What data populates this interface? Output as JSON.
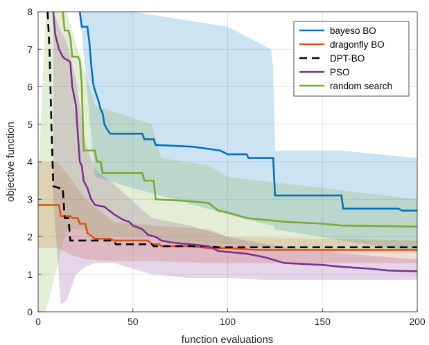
{
  "chart_data": {
    "type": "line",
    "title": "",
    "xlabel": "function evaluations",
    "ylabel": "objective function",
    "xlim": [
      0,
      200
    ],
    "ylim": [
      0,
      8
    ],
    "xticks": [
      0,
      50,
      100,
      150,
      200
    ],
    "yticks": [
      0,
      1,
      2,
      3,
      4,
      5,
      6,
      7,
      8
    ],
    "grid": true,
    "legend_position": "top-right",
    "series": [
      {
        "name": "bayeso BO",
        "color": "#0072BD",
        "dash": "solid",
        "points": [
          [
            22,
            8.0
          ],
          [
            23,
            7.6
          ],
          [
            26,
            7.6
          ],
          [
            27,
            7.2
          ],
          [
            28,
            6.6
          ],
          [
            29,
            6.1
          ],
          [
            30,
            5.9
          ],
          [
            32,
            5.6
          ],
          [
            33,
            5.4
          ],
          [
            34,
            5.3
          ],
          [
            35,
            5.0
          ],
          [
            36,
            4.9
          ],
          [
            38,
            4.75
          ],
          [
            55,
            4.75
          ],
          [
            56,
            4.6
          ],
          [
            61,
            4.6
          ],
          [
            62,
            4.45
          ],
          [
            82,
            4.4
          ],
          [
            96,
            4.3
          ],
          [
            100,
            4.2
          ],
          [
            110,
            4.2
          ],
          [
            111,
            4.1
          ],
          [
            124,
            4.1
          ],
          [
            125,
            3.1
          ],
          [
            160,
            3.1
          ],
          [
            161,
            2.75
          ],
          [
            190,
            2.75
          ],
          [
            192,
            2.7
          ],
          [
            200,
            2.7
          ]
        ],
        "band": [
          [
            22,
            8.0,
            8.0
          ],
          [
            30,
            8.0,
            3.6
          ],
          [
            50,
            8.0,
            3.3
          ],
          [
            100,
            7.6,
            2.6
          ],
          [
            123,
            7.0,
            2.3
          ],
          [
            124,
            6.5,
            2.3
          ],
          [
            125,
            4.3,
            2.2
          ],
          [
            160,
            4.3,
            1.9
          ],
          [
            200,
            4.1,
            1.6
          ]
        ]
      },
      {
        "name": "dragonfly BO",
        "color": "#D95319",
        "dash": "solid",
        "points": [
          [
            0,
            2.85
          ],
          [
            11,
            2.85
          ],
          [
            12,
            2.55
          ],
          [
            17,
            2.55
          ],
          [
            18,
            2.5
          ],
          [
            21,
            2.5
          ],
          [
            22,
            2.35
          ],
          [
            25,
            2.35
          ],
          [
            26,
            2.1
          ],
          [
            30,
            1.95
          ],
          [
            38,
            1.95
          ],
          [
            40,
            1.9
          ],
          [
            58,
            1.9
          ],
          [
            60,
            1.8
          ],
          [
            64,
            1.8
          ],
          [
            65,
            1.75
          ],
          [
            80,
            1.75
          ],
          [
            90,
            1.7
          ],
          [
            100,
            1.7
          ],
          [
            115,
            1.65
          ],
          [
            200,
            1.65
          ]
        ],
        "band": [
          [
            0,
            4.0,
            1.7
          ],
          [
            10,
            4.0,
            1.7
          ],
          [
            18,
            3.5,
            1.5
          ],
          [
            25,
            3.0,
            1.4
          ],
          [
            40,
            2.4,
            1.35
          ],
          [
            60,
            2.3,
            1.35
          ],
          [
            90,
            2.2,
            1.3
          ],
          [
            100,
            2.0,
            1.3
          ],
          [
            150,
            1.95,
            1.3
          ],
          [
            200,
            1.9,
            1.3
          ]
        ]
      },
      {
        "name": "DPT-BO",
        "color": "#000000",
        "dash": "dashed",
        "points": [
          [
            5,
            8.0
          ],
          [
            6,
            7.0
          ],
          [
            7,
            5.0
          ],
          [
            8,
            3.35
          ],
          [
            11,
            3.3
          ],
          [
            13,
            3.3
          ],
          [
            14,
            2.5
          ],
          [
            16,
            2.5
          ],
          [
            17,
            1.9
          ],
          [
            40,
            1.9
          ],
          [
            41,
            1.8
          ],
          [
            60,
            1.8
          ],
          [
            61,
            1.75
          ],
          [
            90,
            1.75
          ],
          [
            95,
            1.72
          ],
          [
            200,
            1.72
          ]
        ],
        "band": []
      },
      {
        "name": "PSO",
        "color": "#7E2F8E",
        "dash": "solid",
        "points": [
          [
            8,
            8.0
          ],
          [
            9,
            7.4
          ],
          [
            11,
            7.0
          ],
          [
            12,
            6.9
          ],
          [
            13,
            6.8
          ],
          [
            14,
            6.75
          ],
          [
            16,
            6.7
          ],
          [
            17,
            6.65
          ],
          [
            18,
            6.0
          ],
          [
            20,
            5.5
          ],
          [
            21,
            4.7
          ],
          [
            22,
            4.0
          ],
          [
            23,
            3.9
          ],
          [
            24,
            3.5
          ],
          [
            26,
            3.3
          ],
          [
            28,
            3.0
          ],
          [
            30,
            2.85
          ],
          [
            35,
            2.8
          ],
          [
            40,
            2.6
          ],
          [
            45,
            2.45
          ],
          [
            48,
            2.4
          ],
          [
            50,
            2.3
          ],
          [
            55,
            2.2
          ],
          [
            58,
            2.05
          ],
          [
            62,
            2.0
          ],
          [
            65,
            1.9
          ],
          [
            70,
            1.85
          ],
          [
            80,
            1.8
          ],
          [
            90,
            1.75
          ],
          [
            95,
            1.62
          ],
          [
            110,
            1.55
          ],
          [
            120,
            1.45
          ],
          [
            130,
            1.3
          ],
          [
            150,
            1.25
          ],
          [
            160,
            1.2
          ],
          [
            175,
            1.15
          ],
          [
            185,
            1.1
          ],
          [
            200,
            1.08
          ]
        ],
        "band": [
          [
            8,
            8.0,
            3.0
          ],
          [
            12,
            7.5,
            0.2
          ],
          [
            15,
            7.2,
            0.3
          ],
          [
            20,
            6.2,
            1.0
          ],
          [
            25,
            4.5,
            1.2
          ],
          [
            30,
            3.8,
            1.3
          ],
          [
            40,
            3.4,
            1.3
          ],
          [
            60,
            2.5,
            1.0
          ],
          [
            80,
            2.3,
            0.9
          ],
          [
            100,
            2.0,
            0.9
          ],
          [
            120,
            1.8,
            0.85
          ],
          [
            150,
            1.6,
            0.85
          ],
          [
            200,
            1.4,
            0.85
          ]
        ]
      },
      {
        "name": "random search",
        "color": "#77AC30",
        "dash": "solid",
        "points": [
          [
            13,
            8.0
          ],
          [
            14,
            7.5
          ],
          [
            16,
            7.5
          ],
          [
            17,
            7.3
          ],
          [
            18,
            6.8
          ],
          [
            21,
            6.8
          ],
          [
            22,
            6.7
          ],
          [
            23,
            6.1
          ],
          [
            24,
            4.3
          ],
          [
            30,
            4.3
          ],
          [
            31,
            4.0
          ],
          [
            33,
            4.0
          ],
          [
            34,
            3.7
          ],
          [
            55,
            3.7
          ],
          [
            56,
            3.5
          ],
          [
            61,
            3.5
          ],
          [
            62,
            3.0
          ],
          [
            80,
            2.95
          ],
          [
            90,
            2.9
          ],
          [
            95,
            2.7
          ],
          [
            100,
            2.65
          ],
          [
            110,
            2.5
          ],
          [
            120,
            2.45
          ],
          [
            130,
            2.4
          ],
          [
            150,
            2.35
          ],
          [
            160,
            2.3
          ],
          [
            200,
            2.27
          ]
        ],
        "band": [
          [
            0,
            3.5,
            0.0
          ],
          [
            4,
            8.0,
            0.0
          ],
          [
            10,
            8.0,
            1.2
          ],
          [
            15,
            8.0,
            2.2
          ],
          [
            24,
            6.5,
            2.2
          ],
          [
            30,
            5.5,
            2.0
          ],
          [
            60,
            5.0,
            2.0
          ],
          [
            65,
            4.1,
            1.9
          ],
          [
            90,
            3.9,
            1.8
          ],
          [
            100,
            3.6,
            1.8
          ],
          [
            150,
            3.3,
            1.6
          ],
          [
            200,
            3.0,
            1.6
          ]
        ]
      }
    ]
  }
}
